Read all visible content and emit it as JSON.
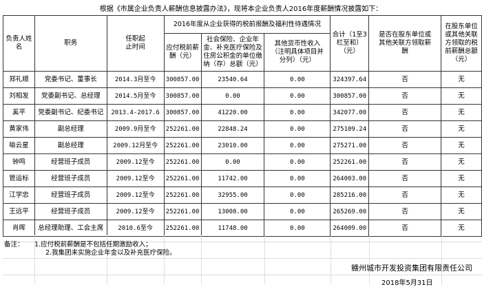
{
  "title": "根据《市属企业负责人薪酬信息披露办法》，现将本企业负责人2016年度薪酬情况披露如下：",
  "headers": {
    "name": "负责人姓名",
    "position": "职务",
    "tenure": "任职起止时间",
    "group": "2016年度从企业获得的税前报酬及福利性待遇情况",
    "salary": "应付税前薪酬（元）",
    "insurance": "社会保险、企业年金、补充医疗保险及住房公积金的单位缴纳（存）总额（元）",
    "other": "其他货币性收入（注明具体项目并分列）（元）",
    "total": "合计（1至3栏至和）（元）",
    "shareholder": "是否在股东单位或其他关联方领取薪酬",
    "shareholder_amount": "在股东单位或其他关联方领取的税前薪酬总额（元）"
  },
  "rows": [
    {
      "name": "郑礼顺",
      "position": "党委书记、董事长",
      "tenure": "2014.3月至今",
      "salary": "300857.00",
      "insurance": "23540.64",
      "other": "0.00",
      "total": "324397.64",
      "shareholder": "否",
      "shareholder_amount": "无"
    },
    {
      "name": "刘相发",
      "position": "党委副书记、总经理",
      "tenure": "2014.5月至今",
      "salary": "300857.00",
      "insurance": "0.00",
      "other": "0.00",
      "total": "300857.00",
      "shareholder": "否",
      "shareholder_amount": "无"
    },
    {
      "name": "奚平",
      "position": "党委副书记、纪委书记",
      "tenure": "2013.4-2017.6",
      "salary": "300857.00",
      "insurance": "41220.00",
      "other": "0.00",
      "total": "342077.00",
      "shareholder": "否",
      "shareholder_amount": "无"
    },
    {
      "name": "黄家伟",
      "position": "副总经理",
      "tenure": "2009.9月至今",
      "salary": "252261.00",
      "insurance": "22848.24",
      "other": "0.00",
      "total": "275109.24",
      "shareholder": "否",
      "shareholder_amount": "无"
    },
    {
      "name": "喻云星",
      "position": "副总经理",
      "tenure": "2009.12月至今",
      "salary": "252261.00",
      "insurance": "23010.00",
      "other": "0.00",
      "total": "275271.00",
      "shareholder": "否",
      "shareholder_amount": "无"
    },
    {
      "name": "钟鸣",
      "position": "经营班子成员",
      "tenure": "2009.12至今",
      "salary": "252261.00",
      "insurance": "0.00",
      "other": "0.00",
      "total": "252261.00",
      "shareholder": "否",
      "shareholder_amount": "无"
    },
    {
      "name": "管运标",
      "position": "经营班子成员",
      "tenure": "2009.12至今",
      "salary": "252261.00",
      "insurance": "11742.00",
      "other": "0.00",
      "total": "264003.00",
      "shareholder": "否",
      "shareholder_amount": "无"
    },
    {
      "name": "江学忠",
      "position": "经营班子成员",
      "tenure": "2009.12至今",
      "salary": "252261.00",
      "insurance": "32955.00",
      "other": "0.00",
      "total": "285216.00",
      "shareholder": "否",
      "shareholder_amount": "无"
    },
    {
      "name": "王远平",
      "position": "经营班子成员",
      "tenure": "2009.12至今",
      "salary": "252261.00",
      "insurance": "13008.00",
      "other": "0.00",
      "total": "265269.00",
      "shareholder": "否",
      "shareholder_amount": "无"
    },
    {
      "name": "肖晖",
      "position": "总经理助理、工会主席",
      "tenure": "2010.6至今",
      "salary": "252261.00",
      "insurance": "11748.00",
      "other": "0.00",
      "total": "264009.00",
      "shareholder": "否",
      "shareholder_amount": "无"
    }
  ],
  "notes": {
    "label": "备注：",
    "items": [
      "1.应付税前薪酬是不包括任期激励收入；",
      "2.我集团未实施企业年金以及补充医疗保险。"
    ]
  },
  "company": "赣州城市开发投资集团有限责任公司",
  "date": "2018年5月31日"
}
